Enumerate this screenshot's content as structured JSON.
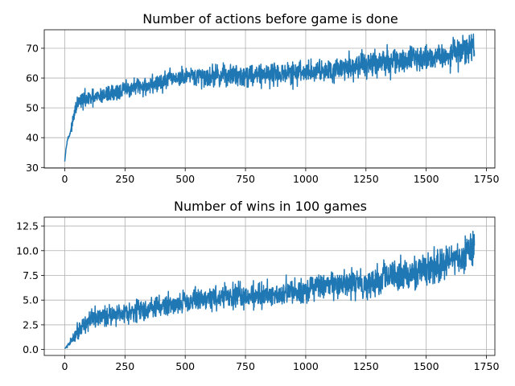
{
  "chart_data": [
    {
      "type": "line",
      "title": "Number of actions before game is done",
      "xlabel": "",
      "ylabel": "",
      "xlim": [
        -85,
        1785
      ],
      "ylim": [
        29.8,
        76.2
      ],
      "grid": true,
      "xticks": [
        0,
        250,
        500,
        750,
        1000,
        1250,
        1500,
        1750
      ],
      "yticks": [
        30,
        40,
        50,
        60,
        70
      ],
      "series_color": "#1f77b4",
      "noise": 1.3,
      "series": [
        {
          "name": "actions",
          "x": [
            0,
            5,
            10,
            20,
            30,
            40,
            50,
            60,
            75,
            100,
            125,
            150,
            175,
            200,
            250,
            300,
            350,
            400,
            450,
            500,
            550,
            600,
            650,
            700,
            750,
            800,
            850,
            900,
            950,
            1000,
            1050,
            1100,
            1150,
            1200,
            1250,
            1300,
            1350,
            1400,
            1450,
            1500,
            1550,
            1600,
            1650,
            1700
          ],
          "y": [
            32,
            36,
            39,
            41,
            44,
            48,
            51,
            52,
            52.5,
            53,
            53.2,
            54,
            54.5,
            55,
            56,
            57,
            57.5,
            58.5,
            60,
            60,
            60.3,
            60.6,
            61,
            61,
            61,
            61.3,
            61.5,
            61.5,
            61.5,
            62,
            62.5,
            63,
            63.5,
            64,
            64.5,
            65,
            65.5,
            66,
            66.5,
            67,
            67.5,
            68,
            69,
            70.5
          ]
        }
      ]
    },
    {
      "type": "line",
      "title": "Number of wins in 100 games",
      "xlabel": "",
      "ylabel": "",
      "xlim": [
        -85,
        1785
      ],
      "ylim": [
        -0.6,
        13.4
      ],
      "grid": true,
      "xticks": [
        0,
        250,
        500,
        750,
        1000,
        1250,
        1500,
        1750
      ],
      "yticks": [
        0.0,
        2.5,
        5.0,
        7.5,
        10.0,
        12.5
      ],
      "series_color": "#1f77b4",
      "noise": 0.45,
      "series": [
        {
          "name": "wins",
          "x": [
            0,
            10,
            25,
            50,
            75,
            100,
            150,
            200,
            250,
            300,
            350,
            400,
            450,
            500,
            550,
            600,
            650,
            700,
            750,
            800,
            850,
            900,
            950,
            1000,
            1050,
            1100,
            1150,
            1200,
            1250,
            1300,
            1350,
            1400,
            1450,
            1500,
            1550,
            1600,
            1650,
            1700
          ],
          "y": [
            0.1,
            0.3,
            0.8,
            1.8,
            2.5,
            2.9,
            3.3,
            3.6,
            3.8,
            4.0,
            4.1,
            4.4,
            4.6,
            4.9,
            5.1,
            5.2,
            5.3,
            5.4,
            5.4,
            5.5,
            5.6,
            5.7,
            5.8,
            6.1,
            6.3,
            6.4,
            6.5,
            6.6,
            6.8,
            7.0,
            7.3,
            7.6,
            7.9,
            8.1,
            8.4,
            9.0,
            9.6,
            10.3
          ]
        }
      ]
    }
  ]
}
